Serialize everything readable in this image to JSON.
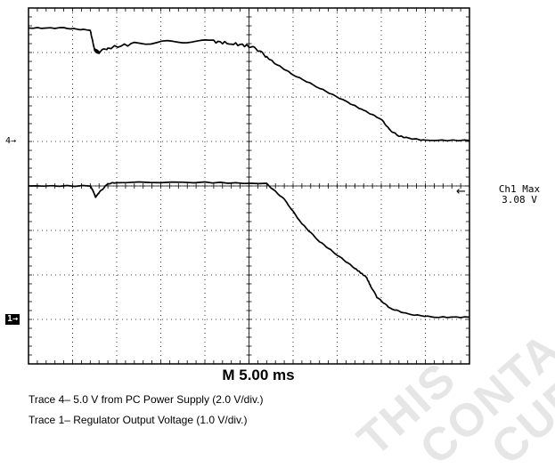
{
  "chart_data": {
    "type": "line",
    "title": "",
    "timebase": "M 5.00 ms",
    "xlabel": "",
    "ylabel": "",
    "xlim": [
      0,
      50
    ],
    "x_unit": "ms",
    "grid": true,
    "channel_markers": [
      {
        "channel": "4",
        "label": "4→"
      },
      {
        "channel": "1",
        "label": "1→"
      }
    ],
    "measurement": {
      "name": "Ch1 Max",
      "value": "3.08 V"
    },
    "series": [
      {
        "channel": "4",
        "volts_per_div": 2.0,
        "x": [
          0,
          4,
          7,
          7.5,
          8,
          9,
          12,
          17,
          21,
          23,
          25,
          26,
          27,
          28,
          30,
          33,
          36,
          38,
          40,
          41,
          42,
          43,
          45,
          50
        ],
        "y": [
          5.1,
          5.1,
          5.0,
          4.1,
          4.0,
          4.2,
          4.4,
          4.5,
          4.5,
          4.4,
          4.3,
          4.1,
          3.8,
          3.5,
          3.0,
          2.4,
          1.8,
          1.4,
          1.0,
          0.5,
          0.25,
          0.15,
          0.05,
          0.05
        ]
      },
      {
        "channel": "1",
        "volts_per_div": 1.0,
        "x": [
          0,
          7,
          7.3,
          7.6,
          8,
          9,
          10,
          20,
          27,
          29,
          31,
          33,
          35,
          37,
          38.3,
          38.8,
          39.5,
          41,
          43,
          46,
          50
        ],
        "y": [
          3.0,
          3.0,
          2.9,
          2.75,
          2.85,
          3.05,
          3.08,
          3.08,
          3.05,
          2.7,
          2.15,
          1.75,
          1.45,
          1.15,
          0.95,
          0.75,
          0.5,
          0.25,
          0.12,
          0.05,
          0.05
        ]
      }
    ]
  },
  "captions": [
    "Trace 4– 5.0 V from PC Power Supply (2.0 V/div.)",
    "Trace 1– Regulator Output Voltage (1.0 V/div.)"
  ],
  "watermark": [
    "THIS",
    "CONTA",
    "CURRENT"
  ],
  "meas_arrow": "←"
}
